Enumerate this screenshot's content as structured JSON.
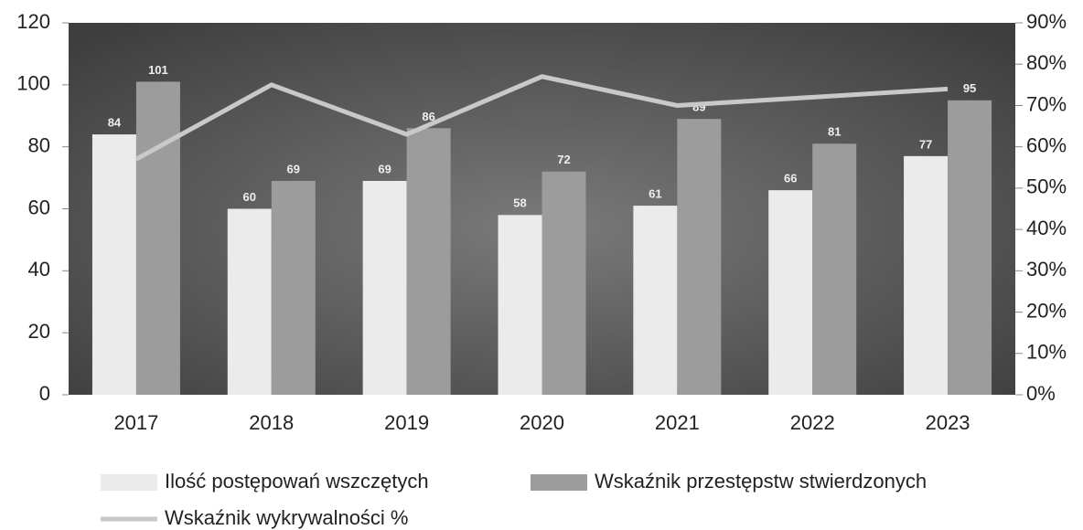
{
  "chart_data": {
    "type": "bar",
    "categories": [
      "2017",
      "2018",
      "2019",
      "2020",
      "2021",
      "2022",
      "2023"
    ],
    "series": [
      {
        "name": "Ilość postępowań wszczętych",
        "color": "#ebebeb",
        "values": [
          84,
          60,
          69,
          58,
          61,
          66,
          77
        ]
      },
      {
        "name": "Wskaźnik przestępstw stwierdzonych",
        "color": "#9c9c9c",
        "values": [
          101,
          69,
          86,
          72,
          89,
          81,
          95
        ]
      },
      {
        "name": "Wskaźnik wykrywalności %",
        "type": "line",
        "axis": "y2",
        "color": "#c9c9c9",
        "values": [
          57,
          75,
          63,
          77,
          70,
          72,
          74
        ]
      }
    ],
    "ylim": [
      0,
      120
    ],
    "yticks": [
      0,
      20,
      40,
      60,
      80,
      100,
      120
    ],
    "y2lim": [
      0,
      90
    ],
    "y2ticks": [
      {
        "value": 0,
        "label": "0%"
      },
      {
        "value": 10,
        "label": "10%"
      },
      {
        "value": 20,
        "label": "20%"
      },
      {
        "value": 30,
        "label": "30%"
      },
      {
        "value": 40,
        "label": "40%"
      },
      {
        "value": 50,
        "label": "50%"
      },
      {
        "value": 60,
        "label": "60%"
      },
      {
        "value": 70,
        "label": "70%"
      },
      {
        "value": 80,
        "label": "80%"
      },
      {
        "value": 90,
        "label": "90%"
      }
    ],
    "legend": "bottom"
  }
}
